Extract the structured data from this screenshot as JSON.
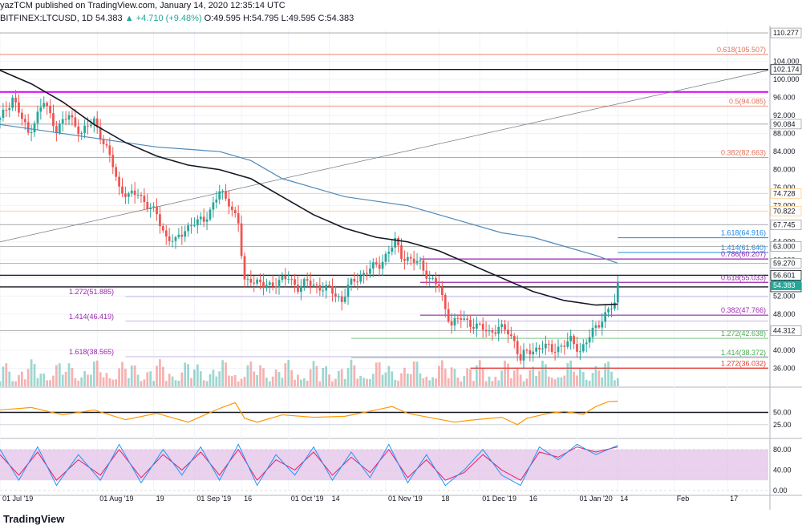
{
  "header": {
    "published": "yazTCM published on TradingView.com, January 14, 2020 12:35:14 UTC",
    "symbol": "BITFINEX:LTCUSD, 1D",
    "last": "54.383",
    "change": "▲ +4.710 (+9.48%)",
    "ohlc": "O:49.595  H:54.795  L:49.595  C:54.383"
  },
  "footer": {
    "logo_text": "TradingView"
  },
  "colors": {
    "up": "#26a69a",
    "down": "#ef5350",
    "ma200": "#131722",
    "ma100": "#4f88b9",
    "fib_upper": "#e5735a",
    "fib_purple": "#9c27b0",
    "fib_blue": "#1e88e5",
    "fib_green": "#81c784",
    "fib_red": "#e53935",
    "rsi": "#ff9800",
    "stoch_k": "#2196f3",
    "stoch_d": "#e91e63",
    "stoch_band": "#e1bee7"
  },
  "chart_data": {
    "type": "candlestick",
    "symbol": "BITFINEX:LTCUSD",
    "timeframe": "1D",
    "ylim": [
      32,
      111
    ],
    "price_ticks": [
      "104.000",
      "100.000",
      "96.000",
      "92.000",
      "88.000",
      "84.000",
      "80.000",
      "76.000",
      "72.000",
      "68.000",
      "64.000",
      "60.000",
      "56.000",
      "52.000",
      "48.000",
      "44.000",
      "40.000",
      "36.000"
    ],
    "x_ticks": [
      {
        "label": "01 Jul '19",
        "day": 0
      },
      {
        "label": "01 Aug '19",
        "day": 31
      },
      {
        "label": "19",
        "day": 49
      },
      {
        "label": "01 Sep '19",
        "day": 62
      },
      {
        "label": "16",
        "day": 77
      },
      {
        "label": "01 Oct '19",
        "day": 92
      },
      {
        "label": "14",
        "day": 105
      },
      {
        "label": "01 Nov '19",
        "day": 123
      },
      {
        "label": "18",
        "day": 140
      },
      {
        "label": "01 Dec '19",
        "day": 153
      },
      {
        "label": "16",
        "day": 168
      },
      {
        "label": "01 Jan '20",
        "day": 184
      },
      {
        "label": "14",
        "day": 197
      },
      {
        "label": "Feb",
        "day": 215
      },
      {
        "label": "17",
        "day": 232
      }
    ],
    "close_path": [
      [
        0,
        91
      ],
      [
        4,
        96
      ],
      [
        9,
        88
      ],
      [
        14,
        95
      ],
      [
        18,
        89
      ],
      [
        22,
        92
      ],
      [
        26,
        88
      ],
      [
        30,
        91
      ],
      [
        33,
        86
      ],
      [
        36,
        81
      ],
      [
        38,
        76
      ],
      [
        41,
        74
      ],
      [
        44,
        75
      ],
      [
        47,
        72
      ],
      [
        50,
        70
      ],
      [
        53,
        65
      ],
      [
        56,
        64
      ],
      [
        59,
        67
      ],
      [
        62,
        68
      ],
      [
        65,
        69
      ],
      [
        67,
        71
      ],
      [
        70,
        75
      ],
      [
        73,
        73
      ],
      [
        76,
        68
      ],
      [
        77,
        61
      ],
      [
        78,
        55
      ],
      [
        80,
        56
      ],
      [
        84,
        54
      ],
      [
        88,
        55
      ],
      [
        92,
        56
      ],
      [
        95,
        54
      ],
      [
        98,
        55
      ],
      [
        102,
        54
      ],
      [
        106,
        53
      ],
      [
        109,
        51
      ],
      [
        111,
        54
      ],
      [
        114,
        56
      ],
      [
        118,
        58
      ],
      [
        121,
        59
      ],
      [
        124,
        62
      ],
      [
        126,
        64
      ],
      [
        128,
        61
      ],
      [
        131,
        60
      ],
      [
        134,
        59
      ],
      [
        137,
        56
      ],
      [
        140,
        54
      ],
      [
        142,
        49
      ],
      [
        144,
        46
      ],
      [
        147,
        47
      ],
      [
        150,
        46
      ],
      [
        153,
        45
      ],
      [
        156,
        44
      ],
      [
        159,
        45
      ],
      [
        162,
        44
      ],
      [
        164,
        42
      ],
      [
        166,
        38
      ],
      [
        167,
        39
      ],
      [
        170,
        40
      ],
      [
        173,
        41
      ],
      [
        176,
        40
      ],
      [
        179,
        41
      ],
      [
        182,
        42
      ],
      [
        185,
        40
      ],
      [
        188,
        43
      ],
      [
        191,
        46
      ],
      [
        194,
        49
      ],
      [
        196,
        50
      ],
      [
        197,
        54.383
      ]
    ],
    "ma200": [
      [
        0,
        102
      ],
      [
        10,
        99
      ],
      [
        20,
        95
      ],
      [
        30,
        90
      ],
      [
        40,
        86
      ],
      [
        50,
        83
      ],
      [
        60,
        81
      ],
      [
        70,
        80
      ],
      [
        80,
        78
      ],
      [
        90,
        74
      ],
      [
        100,
        70
      ],
      [
        110,
        67
      ],
      [
        120,
        65
      ],
      [
        130,
        64
      ],
      [
        140,
        62
      ],
      [
        150,
        59
      ],
      [
        160,
        56
      ],
      [
        170,
        53
      ],
      [
        180,
        51
      ],
      [
        190,
        50
      ],
      [
        197,
        50.2
      ]
    ],
    "ma100": [
      [
        0,
        90
      ],
      [
        10,
        89
      ],
      [
        20,
        88
      ],
      [
        30,
        87
      ],
      [
        40,
        86
      ],
      [
        50,
        85
      ],
      [
        60,
        84.5
      ],
      [
        70,
        84
      ],
      [
        80,
        82
      ],
      [
        90,
        78
      ],
      [
        100,
        76
      ],
      [
        110,
        74
      ],
      [
        120,
        73
      ],
      [
        130,
        72
      ],
      [
        140,
        70
      ],
      [
        150,
        68
      ],
      [
        160,
        66
      ],
      [
        170,
        65
      ],
      [
        180,
        63
      ],
      [
        190,
        61
      ],
      [
        197,
        59.27
      ]
    ],
    "trendline": {
      "from": [
        0,
        64
      ],
      "to": [
        245,
        102
      ]
    },
    "levels": [
      {
        "price": 110.277,
        "label": "110.277",
        "style": "grey"
      },
      {
        "price": 105.507,
        "label": "0.618(105.507)",
        "style": "fib_upper"
      },
      {
        "price": 102.174,
        "label": "102.174",
        "style": "black"
      },
      {
        "price": 97.2,
        "label": "",
        "style": "magenta"
      },
      {
        "price": 94.085,
        "label": "0.5(94.085)",
        "style": "fib_upper"
      },
      {
        "price": 90.084,
        "label": "90.084",
        "style": "grey"
      },
      {
        "price": 82.663,
        "label": "0.382(82.663)",
        "style": "fib_upper"
      },
      {
        "price": 74.728,
        "label": "74.728",
        "style": "orange"
      },
      {
        "price": 70.822,
        "label": "70.822",
        "style": "orange"
      },
      {
        "price": 67.745,
        "label": "67.745",
        "style": "grey"
      },
      {
        "price": 64.916,
        "label": "1.618(64.916)",
        "style": "fib_blue"
      },
      {
        "price": 63.0,
        "label": "63.000",
        "style": "grey"
      },
      {
        "price": 61.64,
        "label": "1.414(61.640)",
        "style": "fib_blue"
      },
      {
        "price": 60.207,
        "label": "0.786(60.207)",
        "style": "fib_purple"
      },
      {
        "price": 59.27,
        "label": "59.270",
        "style": "grey"
      },
      {
        "price": 56.601,
        "label": "56.601",
        "style": "black"
      },
      {
        "price": 55.033,
        "label": "0.618(55.033)",
        "style": "fib_purple"
      },
      {
        "price": 54.018,
        "label": "54.018",
        "style": "black"
      },
      {
        "price": 51.885,
        "label": "1.272(51.885)",
        "style": "fib_purple_left"
      },
      {
        "price": 47.766,
        "label": "0.382(47.766)",
        "style": "fib_purple"
      },
      {
        "price": 46.419,
        "label": "1.414(46.419)",
        "style": "fib_purple_left"
      },
      {
        "price": 44.312,
        "label": "44.312",
        "style": "grey"
      },
      {
        "price": 42.638,
        "label": "1.272(42.638)",
        "style": "fib_green"
      },
      {
        "price": 38.565,
        "label": "1.618(38.565)",
        "style": "fib_purple_left"
      },
      {
        "price": 38.372,
        "label": "1.414(38.372)",
        "style": "fib_green"
      },
      {
        "price": 36.032,
        "label": "1.272(36.032)",
        "style": "fib_red"
      }
    ],
    "price_badge": {
      "label": "54.383"
    },
    "rsi": {
      "ticks": [
        "50.00",
        "25.00"
      ],
      "ylim": [
        0,
        100
      ],
      "series": [
        [
          0,
          55
        ],
        [
          10,
          60
        ],
        [
          20,
          45
        ],
        [
          30,
          55
        ],
        [
          40,
          35
        ],
        [
          50,
          48
        ],
        [
          60,
          30
        ],
        [
          70,
          58
        ],
        [
          75,
          70
        ],
        [
          78,
          38
        ],
        [
          82,
          30
        ],
        [
          90,
          45
        ],
        [
          100,
          40
        ],
        [
          110,
          42
        ],
        [
          120,
          55
        ],
        [
          125,
          62
        ],
        [
          130,
          48
        ],
        [
          140,
          36
        ],
        [
          145,
          30
        ],
        [
          150,
          34
        ],
        [
          160,
          40
        ],
        [
          165,
          25
        ],
        [
          168,
          38
        ],
        [
          175,
          48
        ],
        [
          180,
          52
        ],
        [
          186,
          46
        ],
        [
          190,
          62
        ],
        [
          194,
          72
        ],
        [
          197,
          73
        ]
      ]
    },
    "stoch": {
      "ticks": [
        "80.00",
        "40.00",
        "0.00"
      ],
      "ylim": [
        0,
        100
      ],
      "band": [
        20,
        80
      ],
      "k": [
        [
          0,
          80
        ],
        [
          6,
          20
        ],
        [
          12,
          85
        ],
        [
          18,
          10
        ],
        [
          25,
          70
        ],
        [
          32,
          20
        ],
        [
          38,
          90
        ],
        [
          45,
          15
        ],
        [
          52,
          80
        ],
        [
          58,
          30
        ],
        [
          64,
          85
        ],
        [
          70,
          20
        ],
        [
          76,
          90
        ],
        [
          82,
          10
        ],
        [
          88,
          70
        ],
        [
          94,
          30
        ],
        [
          100,
          85
        ],
        [
          106,
          20
        ],
        [
          112,
          75
        ],
        [
          118,
          25
        ],
        [
          124,
          90
        ],
        [
          130,
          15
        ],
        [
          136,
          70
        ],
        [
          142,
          10
        ],
        [
          148,
          40
        ],
        [
          154,
          80
        ],
        [
          160,
          30
        ],
        [
          166,
          10
        ],
        [
          172,
          85
        ],
        [
          178,
          60
        ],
        [
          184,
          90
        ],
        [
          190,
          70
        ],
        [
          197,
          88
        ]
      ],
      "d": [
        [
          0,
          70
        ],
        [
          6,
          30
        ],
        [
          12,
          75
        ],
        [
          18,
          20
        ],
        [
          25,
          60
        ],
        [
          32,
          30
        ],
        [
          38,
          80
        ],
        [
          45,
          25
        ],
        [
          52,
          70
        ],
        [
          58,
          40
        ],
        [
          64,
          75
        ],
        [
          70,
          30
        ],
        [
          76,
          80
        ],
        [
          82,
          20
        ],
        [
          88,
          60
        ],
        [
          94,
          40
        ],
        [
          100,
          75
        ],
        [
          106,
          30
        ],
        [
          112,
          65
        ],
        [
          118,
          35
        ],
        [
          124,
          80
        ],
        [
          130,
          25
        ],
        [
          136,
          60
        ],
        [
          142,
          20
        ],
        [
          148,
          35
        ],
        [
          154,
          70
        ],
        [
          160,
          40
        ],
        [
          166,
          20
        ],
        [
          172,
          75
        ],
        [
          178,
          65
        ],
        [
          184,
          85
        ],
        [
          190,
          75
        ],
        [
          197,
          85
        ]
      ]
    }
  }
}
